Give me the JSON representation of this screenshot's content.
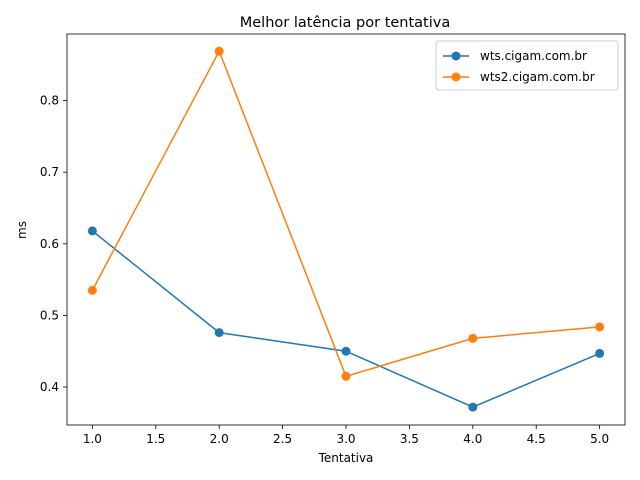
{
  "chart_data": {
    "type": "line",
    "title": "Melhor latência por tentativa",
    "xlabel": "Tentativa",
    "ylabel": "ms",
    "xlim": [
      0.8,
      5.2
    ],
    "ylim": [
      0.347,
      0.893
    ],
    "xticks": [
      "1.0",
      "1.5",
      "2.0",
      "2.5",
      "3.0",
      "3.5",
      "4.0",
      "4.5",
      "5.0"
    ],
    "yticks": [
      "0.4",
      "0.5",
      "0.6",
      "0.7",
      "0.8"
    ],
    "grid": false,
    "legend_position": "top-right",
    "x": [
      1,
      2,
      3,
      4,
      5
    ],
    "series": [
      {
        "name": "wts.cigam.com.br",
        "color": "#1f77b4",
        "values": [
          0.618,
          0.476,
          0.45,
          0.372,
          0.447
        ]
      },
      {
        "name": "wts2.cigam.com.br",
        "color": "#ff7f0e",
        "values": [
          0.535,
          0.869,
          0.415,
          0.468,
          0.484
        ]
      }
    ]
  }
}
